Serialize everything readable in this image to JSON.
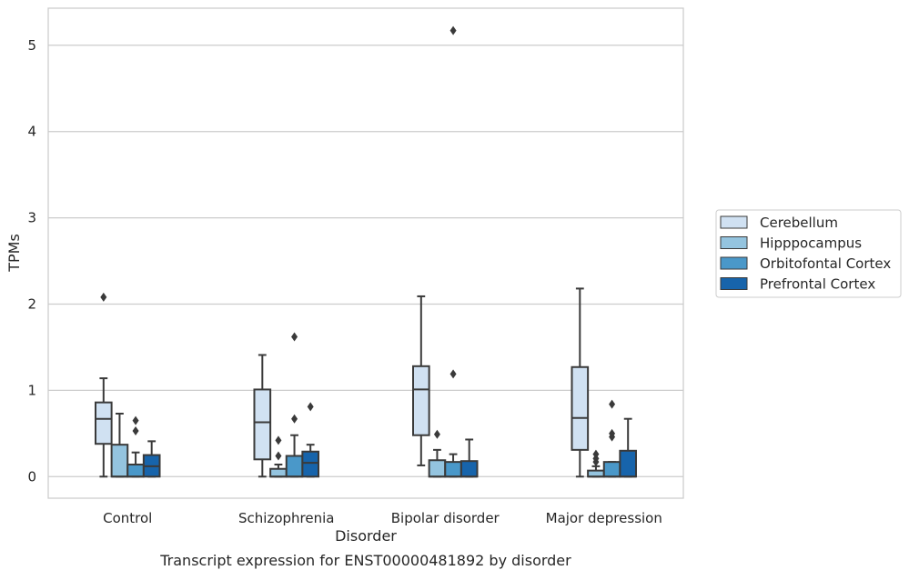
{
  "chart_data": {
    "type": "box",
    "title": "Transcript expression for ENST00000481892 by disorder",
    "xlabel": "Disorder",
    "ylabel": "TPMs",
    "ylim": [
      -0.25,
      5.43
    ],
    "yticks": [
      0,
      1,
      2,
      3,
      4,
      5
    ],
    "grid": "horizontal",
    "legend_position": "right",
    "categories": [
      "Control",
      "Schizophrenia",
      "Bipolar disorder",
      "Major depression"
    ],
    "series": [
      {
        "name": "Cerebellum",
        "color": "#d0e1f2",
        "boxes": [
          {
            "whislo": 0.0,
            "q1": 0.38,
            "med": 0.67,
            "q3": 0.86,
            "whishi": 1.14,
            "fliers": [
              2.08
            ]
          },
          {
            "whislo": 0.0,
            "q1": 0.2,
            "med": 0.63,
            "q3": 1.01,
            "whishi": 1.41,
            "fliers": []
          },
          {
            "whislo": 0.13,
            "q1": 0.48,
            "med": 1.01,
            "q3": 1.28,
            "whishi": 2.09,
            "fliers": []
          },
          {
            "whislo": 0.0,
            "q1": 0.31,
            "med": 0.68,
            "q3": 1.27,
            "whishi": 2.18,
            "fliers": []
          }
        ]
      },
      {
        "name": "Hipppocampus",
        "color": "#94c4df",
        "boxes": [
          {
            "whislo": 0.0,
            "q1": 0.0,
            "med": 0.0,
            "q3": 0.37,
            "whishi": 0.73,
            "fliers": []
          },
          {
            "whislo": 0.0,
            "q1": 0.0,
            "med": 0.0,
            "q3": 0.09,
            "whishi": 0.14,
            "fliers": [
              0.24,
              0.42
            ]
          },
          {
            "whislo": 0.0,
            "q1": 0.0,
            "med": 0.0,
            "q3": 0.19,
            "whishi": 0.31,
            "fliers": [
              0.49
            ]
          },
          {
            "whislo": 0.0,
            "q1": 0.0,
            "med": 0.0,
            "q3": 0.07,
            "whishi": 0.12,
            "fliers": [
              0.17,
              0.21,
              0.26
            ]
          }
        ]
      },
      {
        "name": "Orbitofontal Cortex",
        "color": "#4a98c9",
        "boxes": [
          {
            "whislo": 0.0,
            "q1": 0.0,
            "med": 0.0,
            "q3": 0.14,
            "whishi": 0.28,
            "fliers": [
              0.53,
              0.65
            ]
          },
          {
            "whislo": 0.0,
            "q1": 0.0,
            "med": 0.0,
            "q3": 0.24,
            "whishi": 0.48,
            "fliers": [
              0.67,
              1.62
            ]
          },
          {
            "whislo": 0.0,
            "q1": 0.0,
            "med": 0.0,
            "q3": 0.17,
            "whishi": 0.26,
            "fliers": [
              1.19,
              5.17
            ]
          },
          {
            "whislo": 0.0,
            "q1": 0.0,
            "med": 0.0,
            "q3": 0.17,
            "whishi": 0.17,
            "fliers": [
              0.46,
              0.5,
              0.84
            ]
          }
        ]
      },
      {
        "name": "Prefrontal Cortex",
        "color": "#1764ab",
        "boxes": [
          {
            "whislo": 0.0,
            "q1": 0.0,
            "med": 0.12,
            "q3": 0.25,
            "whishi": 0.41,
            "fliers": []
          },
          {
            "whislo": 0.0,
            "q1": 0.0,
            "med": 0.16,
            "q3": 0.29,
            "whishi": 0.37,
            "fliers": [
              0.81
            ]
          },
          {
            "whislo": 0.0,
            "q1": 0.0,
            "med": 0.0,
            "q3": 0.18,
            "whishi": 0.43,
            "fliers": []
          },
          {
            "whislo": 0.0,
            "q1": 0.0,
            "med": 0.0,
            "q3": 0.3,
            "whishi": 0.67,
            "fliers": []
          }
        ]
      }
    ]
  }
}
